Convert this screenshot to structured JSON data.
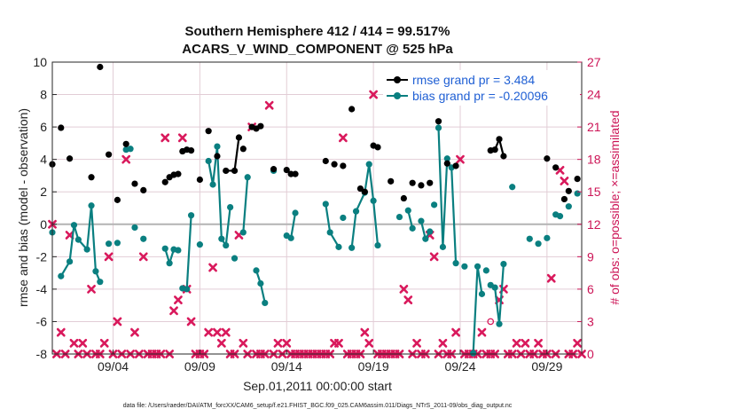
{
  "colors": {
    "rmse": "#000000",
    "bias": "#0a7f80",
    "obs": "#d9195c",
    "zero_line": "#b4b4b4",
    "grid": "#e2cdd6"
  },
  "chart_data": {
    "type": "line",
    "title": [
      "Southern Hemisphere 412 / 414 = 99.517%",
      "ACARS_V_WIND_COMPONENT @ 525 hPa"
    ],
    "xlabel": "Sep.01,2011 00:00:00 start",
    "ylabel_left": "rmse and bias (model - observation)",
    "ylabel_right": "# of obs: o=possible; ×=assimilated",
    "footnote": "data file: /Users/raeder/DAI/ATM_forcXX/CAM6_setup/f.e21.FHIST_BGC.f09_025.CAM6assim.011/Diags_NTrS_2011-09/obs_diag_output.nc",
    "xlim_days": [
      0.5,
      31.0
    ],
    "x_ticks": [
      {
        "day": 4,
        "label": "09/04"
      },
      {
        "day": 9,
        "label": "09/09"
      },
      {
        "day": 14,
        "label": "09/14"
      },
      {
        "day": 19,
        "label": "09/19"
      },
      {
        "day": 24,
        "label": "09/24"
      },
      {
        "day": 29,
        "label": "09/29"
      }
    ],
    "ylim_left": [
      -8,
      10
    ],
    "ylim_right": [
      0,
      27
    ],
    "left_ticks": [
      -8,
      -6,
      -4,
      -2,
      0,
      2,
      4,
      6,
      8,
      10
    ],
    "right_ticks": [
      0,
      3,
      6,
      9,
      12,
      15,
      18,
      21,
      24,
      27
    ],
    "legend": {
      "placement": "top-right",
      "entries": [
        "rmse grand pr = 3.484",
        "bias grand pr = -0.20096"
      ]
    },
    "series": [
      {
        "name": "rmse grand pr = 3.484",
        "axis": "left",
        "points": [
          [
            0.5,
            3.7
          ],
          [
            1.0,
            5.95
          ],
          [
            1.5,
            4.05
          ],
          [
            2.75,
            2.9
          ],
          [
            3.25,
            9.7
          ],
          [
            3.75,
            4.3
          ],
          [
            4.25,
            1.5
          ],
          [
            4.75,
            4.95
          ],
          [
            5.25,
            2.5
          ],
          [
            5.75,
            2.1
          ],
          [
            7.0,
            2.6
          ],
          [
            7.25,
            2.9
          ],
          [
            7.5,
            3.05
          ],
          [
            7.75,
            3.1
          ],
          [
            8.0,
            4.5
          ],
          [
            8.25,
            4.6
          ],
          [
            8.5,
            4.55
          ],
          [
            9.0,
            2.75
          ],
          [
            9.5,
            5.75
          ],
          [
            10.0,
            4.2
          ],
          [
            10.5,
            3.3
          ],
          [
            11.0,
            3.3
          ],
          [
            11.25,
            5.35
          ],
          [
            11.5,
            4.65
          ],
          [
            12.0,
            6.0
          ],
          [
            12.25,
            5.9
          ],
          [
            12.5,
            6.05
          ],
          [
            13.25,
            3.4
          ],
          [
            14.0,
            3.35
          ],
          [
            14.25,
            3.1
          ],
          [
            14.5,
            3.1
          ],
          [
            16.25,
            3.9
          ],
          [
            16.75,
            3.7
          ],
          [
            17.25,
            3.6
          ],
          [
            17.75,
            7.1
          ],
          [
            18.25,
            2.2
          ],
          [
            18.5,
            2.0
          ],
          [
            19.0,
            4.85
          ],
          [
            19.25,
            4.75
          ],
          [
            20.0,
            2.65
          ],
          [
            20.75,
            1.6
          ],
          [
            21.25,
            2.55
          ],
          [
            21.75,
            2.4
          ],
          [
            22.25,
            2.55
          ],
          [
            22.75,
            6.35
          ],
          [
            23.25,
            3.75
          ],
          [
            23.75,
            3.6
          ],
          [
            25.75,
            4.55
          ],
          [
            26.0,
            4.6
          ],
          [
            26.25,
            5.25
          ],
          [
            26.5,
            4.2
          ],
          [
            29.0,
            4.05
          ],
          [
            29.5,
            3.5
          ],
          [
            30.0,
            1.55
          ],
          [
            30.25,
            2.05
          ],
          [
            30.75,
            2.8
          ]
        ],
        "connected_segments": [
          [
            10.5,
            11.25
          ],
          [
            25.75,
            26.5
          ]
        ]
      },
      {
        "name": "bias grand pr = -0.20096",
        "axis": "left",
        "points": [
          [
            0.5,
            -0.5
          ],
          [
            1.0,
            -3.2
          ],
          [
            1.5,
            -2.3
          ],
          [
            1.75,
            -0.05
          ],
          [
            2.0,
            -0.95
          ],
          [
            2.5,
            -1.55
          ],
          [
            2.75,
            1.15
          ],
          [
            3.0,
            -2.9
          ],
          [
            3.25,
            -3.55
          ],
          [
            3.75,
            -1.2
          ],
          [
            4.25,
            -1.15
          ],
          [
            4.75,
            4.6
          ],
          [
            5.0,
            4.65
          ],
          [
            5.25,
            -0.2
          ],
          [
            5.75,
            -0.9
          ],
          [
            7.0,
            -1.5
          ],
          [
            7.25,
            -2.4
          ],
          [
            7.5,
            -1.55
          ],
          [
            7.75,
            -1.6
          ],
          [
            8.0,
            -3.95
          ],
          [
            8.25,
            -4.0
          ],
          [
            8.5,
            0.55
          ],
          [
            9.0,
            -1.25
          ],
          [
            9.5,
            3.9
          ],
          [
            9.75,
            2.45
          ],
          [
            10.0,
            4.8
          ],
          [
            10.25,
            -0.9
          ],
          [
            10.5,
            -1.3
          ],
          [
            10.75,
            1.05
          ],
          [
            11.0,
            -2.1
          ],
          [
            11.5,
            -0.5
          ],
          [
            11.75,
            2.9
          ],
          [
            12.25,
            -2.85
          ],
          [
            12.5,
            -3.65
          ],
          [
            12.75,
            -4.85
          ],
          [
            13.25,
            3.3
          ],
          [
            14.0,
            -0.7
          ],
          [
            14.25,
            -0.85
          ],
          [
            14.5,
            0.7
          ],
          [
            16.25,
            1.25
          ],
          [
            16.5,
            -0.5
          ],
          [
            17.0,
            -1.4
          ],
          [
            17.25,
            0.4
          ],
          [
            17.75,
            -1.45
          ],
          [
            18.0,
            0.8
          ],
          [
            18.5,
            1.95
          ],
          [
            18.75,
            3.7
          ],
          [
            19.0,
            1.45
          ],
          [
            19.25,
            -1.3
          ],
          [
            20.5,
            0.45
          ],
          [
            21.0,
            0.85
          ],
          [
            21.25,
            -0.25
          ],
          [
            21.75,
            0.2
          ],
          [
            22.0,
            -0.9
          ],
          [
            22.25,
            -0.45
          ],
          [
            22.5,
            1.2
          ],
          [
            22.75,
            5.95
          ],
          [
            23.0,
            -1.4
          ],
          [
            23.25,
            4.05
          ],
          [
            23.5,
            3.5
          ],
          [
            23.75,
            -2.4
          ],
          [
            24.25,
            -2.6
          ],
          [
            24.75,
            -7.95
          ],
          [
            25.0,
            -2.6
          ],
          [
            25.25,
            -4.3
          ],
          [
            25.5,
            -2.85
          ],
          [
            25.75,
            -3.75
          ],
          [
            26.0,
            -3.9
          ],
          [
            26.25,
            -6.15
          ],
          [
            26.5,
            -2.45
          ],
          [
            27.0,
            2.3
          ],
          [
            28.0,
            -0.9
          ],
          [
            28.5,
            -1.2
          ],
          [
            29.0,
            -0.85
          ],
          [
            29.5,
            0.6
          ],
          [
            29.75,
            0.5
          ],
          [
            30.25,
            1.1
          ],
          [
            30.75,
            1.9
          ]
        ],
        "connected_segments": [
          [
            1.0,
            3.25
          ],
          [
            7.0,
            7.75
          ],
          [
            8.25,
            8.5
          ],
          [
            9.5,
            10.75
          ],
          [
            11.5,
            11.75
          ],
          [
            12.25,
            12.75
          ],
          [
            14.0,
            14.5
          ],
          [
            16.25,
            17.0
          ],
          [
            17.75,
            19.25
          ],
          [
            21.0,
            21.25
          ],
          [
            21.75,
            22.25
          ],
          [
            22.75,
            23.25
          ],
          [
            23.5,
            23.75
          ],
          [
            24.75,
            25.25
          ],
          [
            25.75,
            26.5
          ],
          [
            29.5,
            29.75
          ]
        ]
      },
      {
        "name": "assimilated",
        "axis": "right",
        "marker": "x",
        "points": [
          [
            0.5,
            12
          ],
          [
            0.75,
            0
          ],
          [
            1.0,
            2
          ],
          [
            1.25,
            0
          ],
          [
            1.5,
            11
          ],
          [
            1.75,
            1
          ],
          [
            2.0,
            0
          ],
          [
            2.25,
            1
          ],
          [
            2.5,
            0
          ],
          [
            2.75,
            6
          ],
          [
            3.0,
            0
          ],
          [
            3.25,
            0
          ],
          [
            3.5,
            1
          ],
          [
            3.75,
            9
          ],
          [
            4.0,
            0
          ],
          [
            4.25,
            3
          ],
          [
            4.5,
            0
          ],
          [
            4.75,
            18
          ],
          [
            5.0,
            0
          ],
          [
            5.25,
            2
          ],
          [
            5.5,
            0
          ],
          [
            5.75,
            9
          ],
          [
            6.0,
            0
          ],
          [
            6.25,
            0
          ],
          [
            6.5,
            0
          ],
          [
            6.75,
            0
          ],
          [
            7.0,
            20
          ],
          [
            7.25,
            0
          ],
          [
            7.5,
            4
          ],
          [
            7.75,
            5
          ],
          [
            8.0,
            20
          ],
          [
            8.25,
            6
          ],
          [
            8.5,
            3
          ],
          [
            8.75,
            0
          ],
          [
            9.0,
            0
          ],
          [
            9.25,
            0
          ],
          [
            9.5,
            2
          ],
          [
            9.75,
            8
          ],
          [
            10.0,
            2
          ],
          [
            10.25,
            1
          ],
          [
            10.5,
            2
          ],
          [
            10.75,
            0
          ],
          [
            11.0,
            0
          ],
          [
            11.25,
            11
          ],
          [
            11.5,
            1
          ],
          [
            11.75,
            0
          ],
          [
            12.0,
            21
          ],
          [
            12.25,
            0
          ],
          [
            12.5,
            0
          ],
          [
            12.75,
            0
          ],
          [
            13.0,
            23
          ],
          [
            13.25,
            0
          ],
          [
            13.5,
            1
          ],
          [
            13.75,
            0
          ],
          [
            14.0,
            1
          ],
          [
            14.25,
            0
          ],
          [
            14.5,
            0
          ],
          [
            14.75,
            0
          ],
          [
            15.0,
            0
          ],
          [
            15.25,
            0
          ],
          [
            15.5,
            0
          ],
          [
            15.75,
            0
          ],
          [
            16.0,
            0
          ],
          [
            16.25,
            0
          ],
          [
            16.5,
            0
          ],
          [
            16.75,
            1
          ],
          [
            17.0,
            1
          ],
          [
            17.25,
            20
          ],
          [
            17.5,
            0
          ],
          [
            17.75,
            0
          ],
          [
            18.0,
            0
          ],
          [
            18.25,
            0
          ],
          [
            18.5,
            2
          ],
          [
            18.75,
            1
          ],
          [
            19.0,
            24
          ],
          [
            19.25,
            0
          ],
          [
            19.5,
            0
          ],
          [
            19.75,
            0
          ],
          [
            20.0,
            0
          ],
          [
            20.25,
            0
          ],
          [
            20.5,
            0
          ],
          [
            20.75,
            6
          ],
          [
            21.0,
            5
          ],
          [
            21.25,
            0
          ],
          [
            21.5,
            1
          ],
          [
            21.75,
            0
          ],
          [
            22.0,
            0
          ],
          [
            22.25,
            11
          ],
          [
            22.5,
            9
          ],
          [
            22.75,
            0
          ],
          [
            23.0,
            1
          ],
          [
            23.25,
            0
          ],
          [
            23.5,
            0
          ],
          [
            23.75,
            2
          ],
          [
            24.0,
            18
          ],
          [
            24.25,
            0
          ],
          [
            24.5,
            0
          ],
          [
            24.75,
            0
          ],
          [
            25.0,
            0
          ],
          [
            25.25,
            2
          ],
          [
            25.5,
            0
          ],
          [
            25.75,
            0
          ],
          [
            26.0,
            0
          ],
          [
            26.25,
            5
          ],
          [
            26.5,
            6
          ],
          [
            26.75,
            0
          ],
          [
            27.0,
            0
          ],
          [
            27.25,
            1
          ],
          [
            27.5,
            0
          ],
          [
            27.75,
            1
          ],
          [
            28.0,
            0
          ],
          [
            28.25,
            0
          ],
          [
            28.5,
            1
          ],
          [
            28.75,
            0
          ],
          [
            29.0,
            0
          ],
          [
            29.25,
            7
          ],
          [
            29.5,
            0
          ],
          [
            29.75,
            17
          ],
          [
            30.0,
            16
          ],
          [
            30.25,
            0
          ],
          [
            30.5,
            0
          ],
          [
            30.75,
            1
          ],
          [
            31.0,
            0
          ]
        ]
      },
      {
        "name": "possible",
        "axis": "right",
        "marker": "o",
        "points": [
          [
            25.75,
            3
          ]
        ]
      }
    ]
  }
}
